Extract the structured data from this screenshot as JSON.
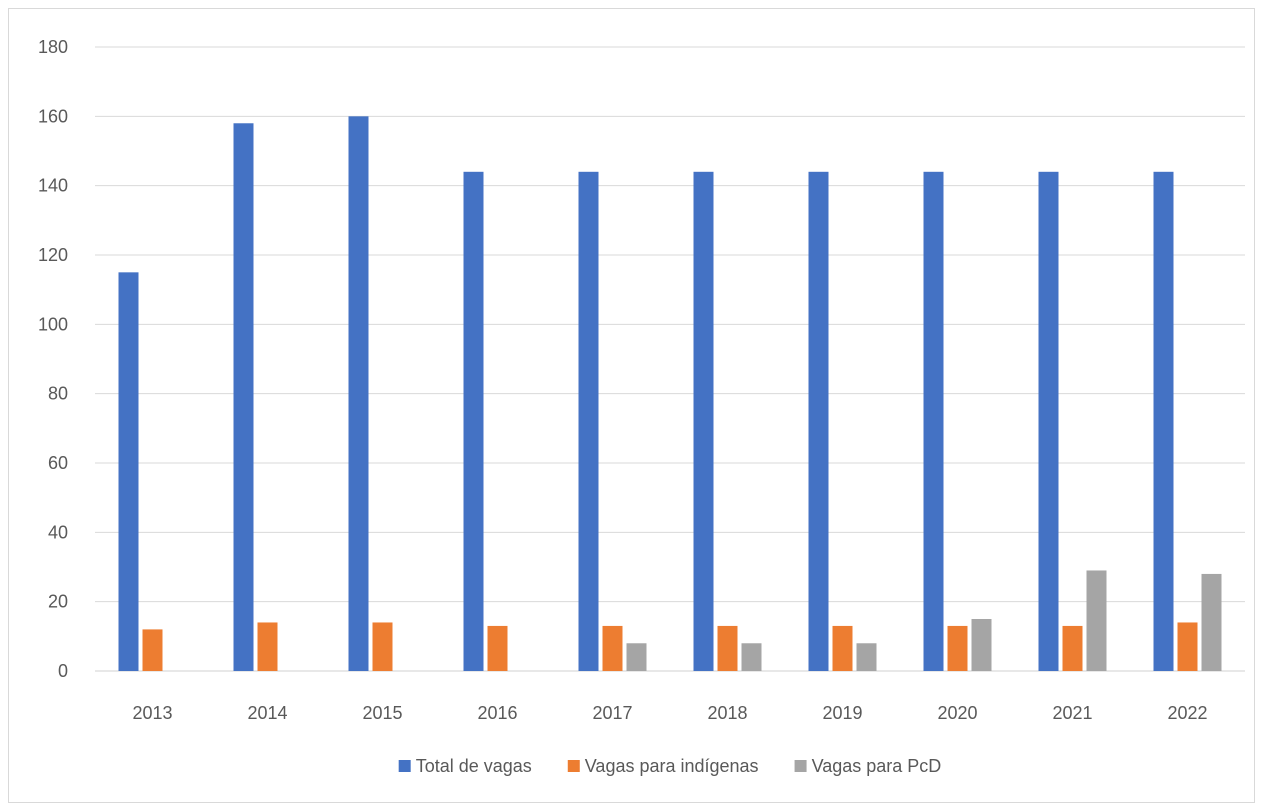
{
  "chart_data": {
    "type": "bar",
    "title": "",
    "xlabel": "",
    "ylabel": "",
    "categories": [
      "2013",
      "2014",
      "2015",
      "2016",
      "2017",
      "2018",
      "2019",
      "2020",
      "2021",
      "2022"
    ],
    "ylim": [
      0,
      180
    ],
    "yticks": [
      0,
      20,
      40,
      60,
      80,
      100,
      120,
      140,
      160,
      180
    ],
    "grid": true,
    "legend_position": "bottom",
    "series": [
      {
        "name": "Total de vagas",
        "color": "#4472C4",
        "values": [
          115,
          158,
          160,
          144,
          144,
          144,
          144,
          144,
          144,
          144
        ]
      },
      {
        "name": "Vagas para indígenas",
        "color": "#ED7D31",
        "values": [
          12,
          14,
          14,
          13,
          13,
          13,
          13,
          13,
          13,
          14
        ]
      },
      {
        "name": "Vagas para PcD",
        "color": "#A5A5A5",
        "values": [
          0,
          0,
          0,
          0,
          8,
          8,
          8,
          15,
          29,
          28
        ]
      }
    ]
  }
}
